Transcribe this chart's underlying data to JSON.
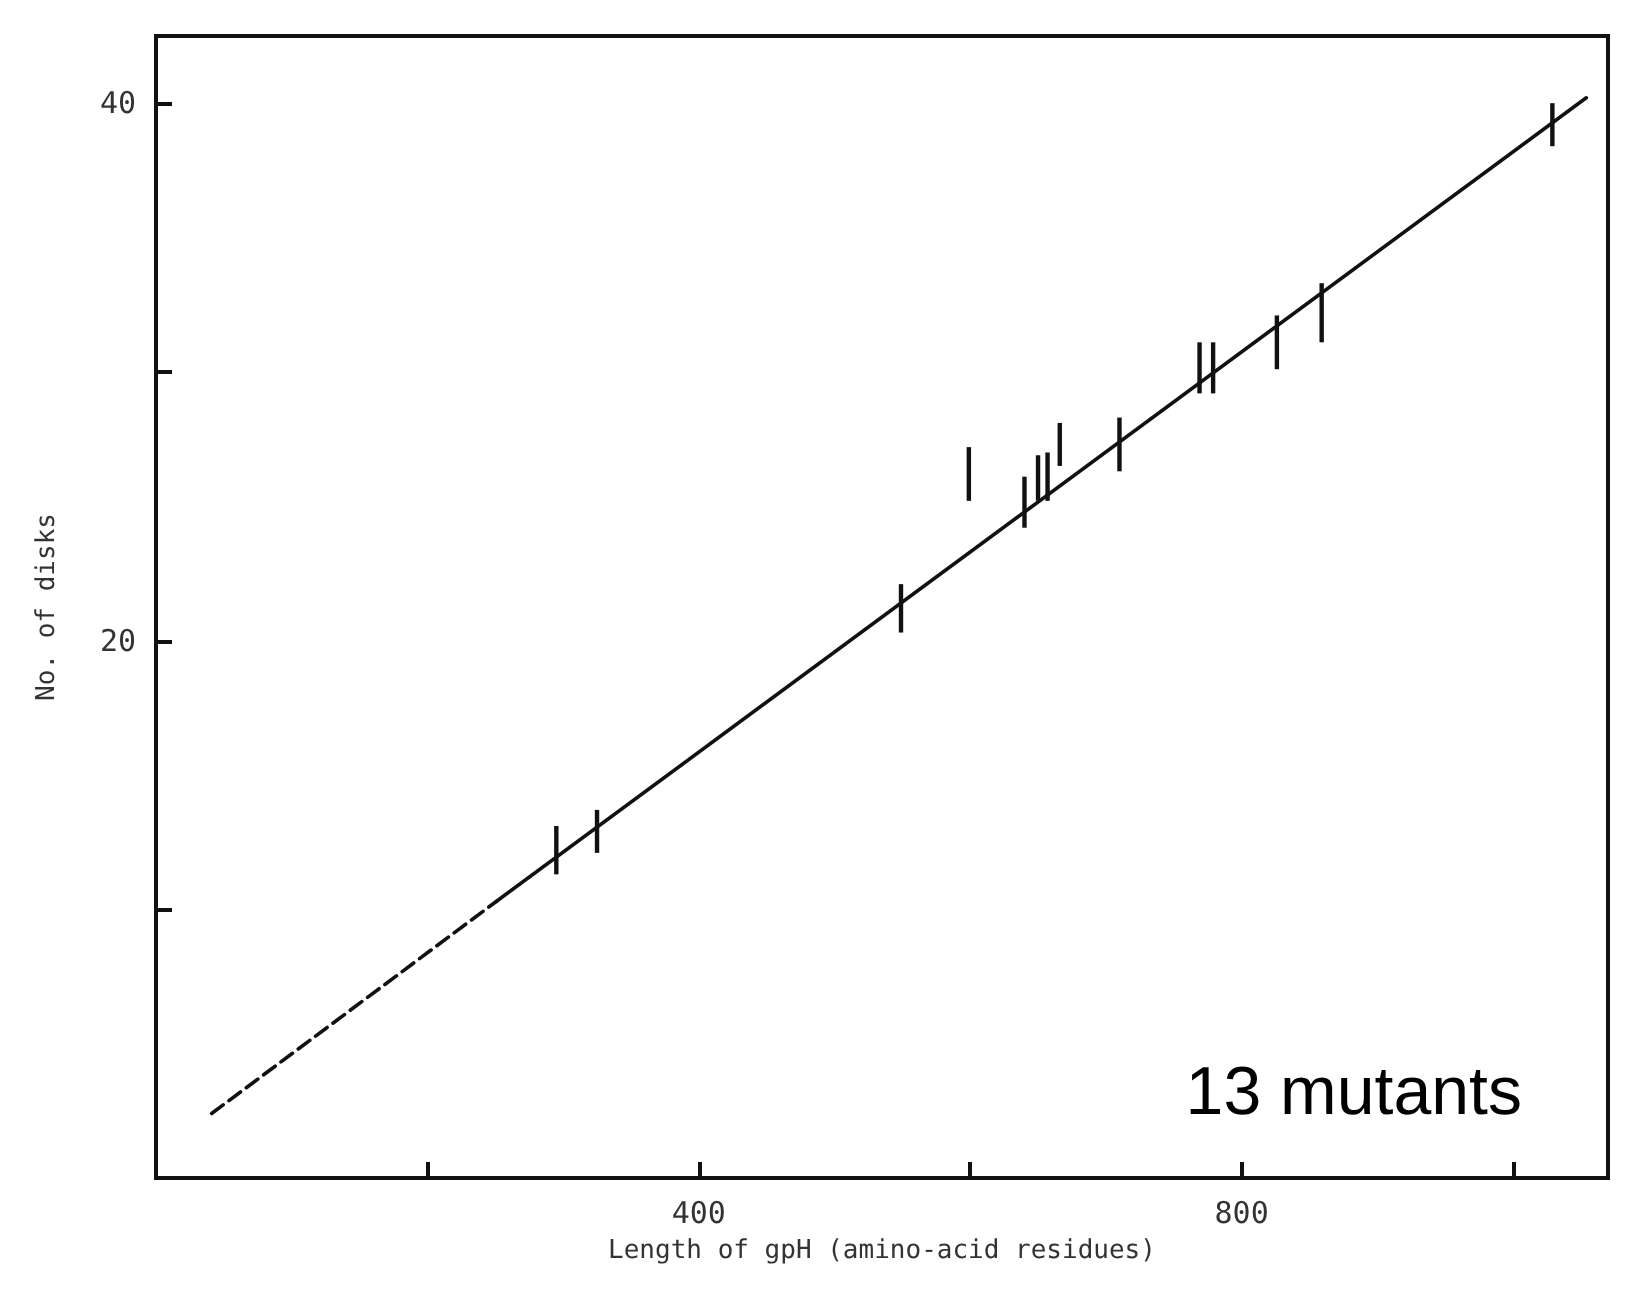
{
  "chart_data": {
    "type": "bar",
    "xlabel": "Length of gpH (amino-acid residues)",
    "ylabel": "No. of disks",
    "xlim": [
      0,
      1070
    ],
    "ylim": [
      0,
      42.5
    ],
    "xticks": [
      {
        "value": 200,
        "label": null
      },
      400,
      {
        "value": 600,
        "label": null
      },
      800,
      {
        "value": 1000,
        "label": null
      }
    ],
    "yticks": [
      {
        "value": 10,
        "label": null
      },
      20,
      {
        "value": 30,
        "label": null
      },
      40
    ],
    "grid": false,
    "annotations": [
      "13 mutants"
    ],
    "series": [
      {
        "color": "#111111",
        "x": [
          295,
          325,
          549,
          599,
          640,
          650,
          657,
          666,
          710,
          769,
          779,
          826,
          859,
          1029
        ],
        "base": [
          11.3,
          12.1,
          20.3,
          25.2,
          24.2,
          25.2,
          25.2,
          26.5,
          26.3,
          29.2,
          29.2,
          30.1,
          31.1,
          38.4
        ],
        "values": [
          1.8,
          1.6,
          1.8,
          2.0,
          1.9,
          1.7,
          1.8,
          1.6,
          2.0,
          1.9,
          1.9,
          2.0,
          2.2,
          1.6
        ]
      },
      {
        "type": "line",
        "color": "#111111",
        "line_style": "solid",
        "x": [
          251,
          1054
        ],
        "values": [
          10.3,
          40.2
        ]
      },
      {
        "type": "line",
        "color": "#111111",
        "line_style": "dashed",
        "x": [
          41,
          251
        ],
        "values": [
          2.4,
          10.3
        ]
      }
    ]
  }
}
